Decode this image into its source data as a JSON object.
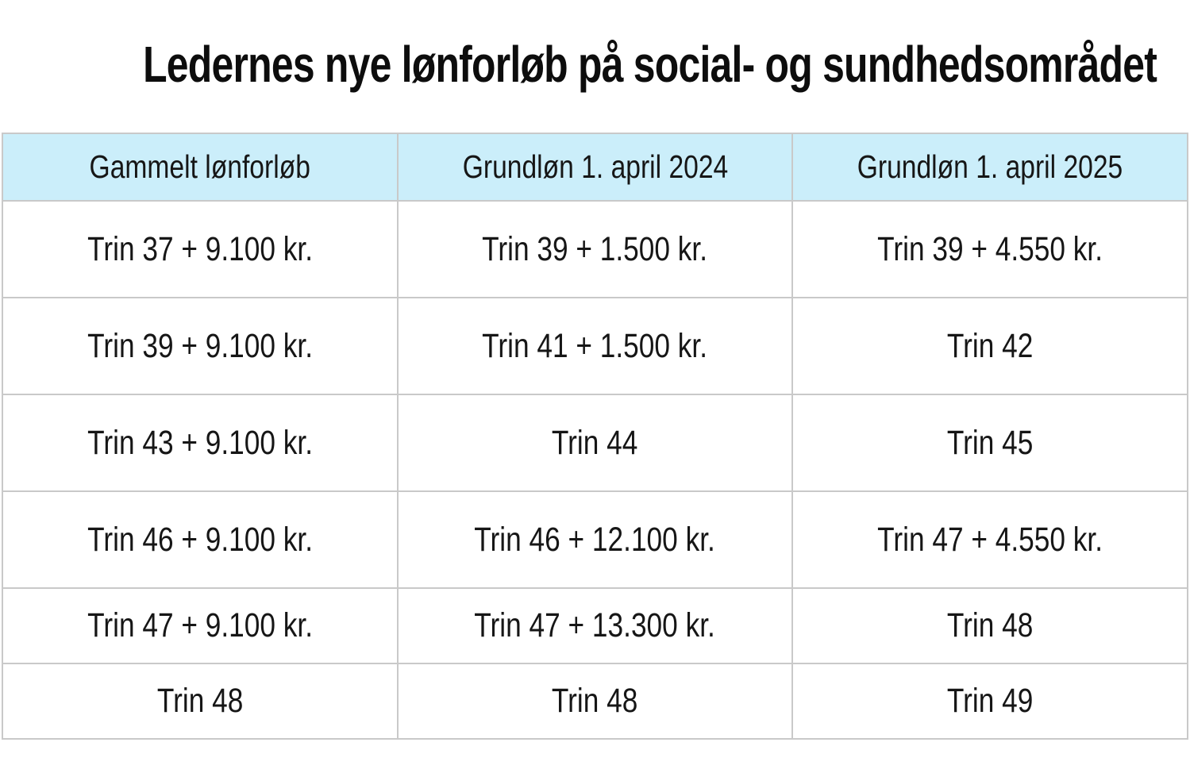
{
  "title": "Ledernes nye lønforløb på social- og sundhedsområdet",
  "table": {
    "headers": [
      "Gammelt lønforløb",
      "Grundløn 1. april 2024",
      "Grundløn 1. april 2025"
    ],
    "rows": [
      [
        "Trin 37 + 9.100 kr.",
        "Trin 39 + 1.500 kr.",
        "Trin 39 + 4.550 kr."
      ],
      [
        "Trin 39 + 9.100 kr.",
        "Trin 41 + 1.500 kr.",
        "Trin 42"
      ],
      [
        "Trin 43 + 9.100 kr.",
        "Trin 44",
        "Trin 45"
      ],
      [
        "Trin 46 + 9.100 kr.",
        "Trin 46 + 12.100 kr.",
        "Trin 47 + 4.550 kr."
      ],
      [
        "Trin 47 + 9.100 kr.",
        "Trin 47 + 13.300 kr.",
        "Trin 48"
      ],
      [
        "Trin 48",
        "Trin 48",
        "Trin 49"
      ]
    ]
  },
  "colors": {
    "header_bg": "#cbeefa",
    "border": "#c9c9c9",
    "text": "#161616",
    "background": "#ffffff"
  },
  "chart_data": {
    "type": "table",
    "title": "Ledernes nye lønforløb på social- og sundhedsområdet",
    "columns": [
      "Gammelt lønforløb",
      "Grundløn 1. april 2024",
      "Grundløn 1. april 2025"
    ],
    "rows": [
      [
        "Trin 37 + 9.100 kr.",
        "Trin 39 + 1.500 kr.",
        "Trin 39 + 4.550 kr."
      ],
      [
        "Trin 39 + 9.100 kr.",
        "Trin 41 + 1.500 kr.",
        "Trin 42"
      ],
      [
        "Trin 43 + 9.100 kr.",
        "Trin 44",
        "Trin 45"
      ],
      [
        "Trin 46 + 9.100 kr.",
        "Trin 46 + 12.100 kr.",
        "Trin 47 + 4.550 kr."
      ],
      [
        "Trin 47 + 9.100 kr.",
        "Trin 47 + 13.300 kr.",
        "Trin 48"
      ],
      [
        "Trin 48",
        "Trin 48",
        "Trin 49"
      ]
    ],
    "layout": {
      "header_fill": "#cbeefa",
      "grid": true,
      "columns_equal_width": true
    }
  }
}
